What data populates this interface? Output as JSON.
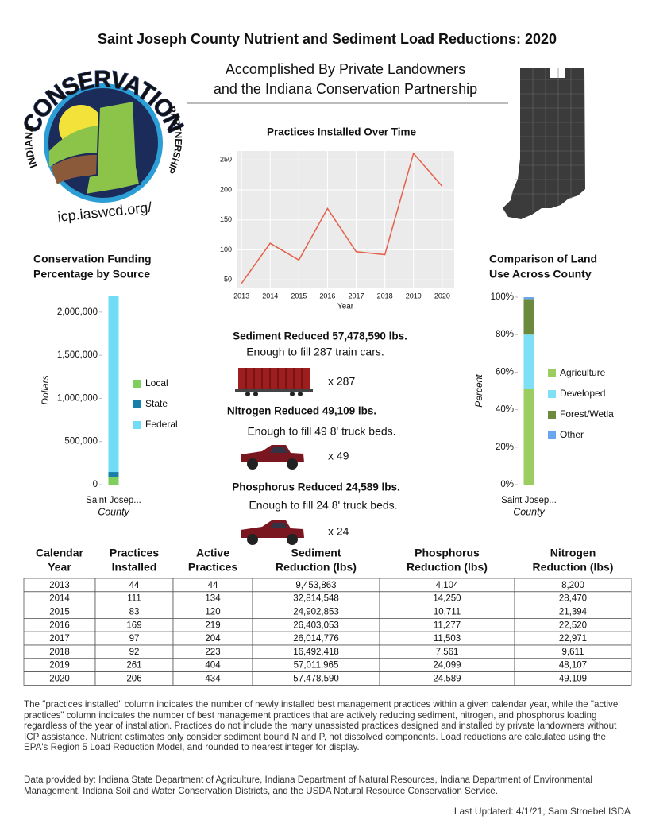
{
  "header": {
    "title": "Saint Joseph County Nutrient and Sediment Load Reductions: 2020",
    "subtitle": [
      "Accomplished By Private Landowners",
      "and the Indiana Conservation Partnership"
    ]
  },
  "logo": {
    "arc_text": "CONSERVATION",
    "left_text": "INDIANA",
    "right_text": "PARTNERSHIP",
    "url": "icp.iaswcd.org/"
  },
  "chart_data": [
    {
      "type": "line",
      "title": "Practices Installed Over Time",
      "x_label": "Year",
      "x": [
        2013,
        2014,
        2015,
        2016,
        2017,
        2018,
        2019,
        2020
      ],
      "values": [
        44,
        111,
        83,
        169,
        97,
        92,
        261,
        206
      ],
      "color": "#e5604b",
      "xlim": [
        2012.83,
        2020.42
      ],
      "ylim": [
        37,
        265
      ],
      "xticks": [
        2013,
        2014,
        2015,
        2016,
        2017,
        2018,
        2019,
        2020
      ],
      "yticks": [
        50,
        100,
        150,
        200,
        250
      ],
      "grid": true
    },
    {
      "type": "stacked_bar",
      "title": [
        "Conservation Funding",
        "Percentage by Source"
      ],
      "y_label": "Dollars",
      "x_label": "County",
      "categories": [
        "Saint Josep..."
      ],
      "series": [
        {
          "name": "Local",
          "color": "#7fcf5e",
          "values": [
            92000
          ]
        },
        {
          "name": "State",
          "color": "#1880a8",
          "values": [
            55000
          ]
        },
        {
          "name": "Federal",
          "color": "#70dcf6",
          "values": [
            2045000
          ]
        }
      ],
      "ylim": [
        0,
        2192000
      ],
      "yticks": [
        0,
        {
          "value": 500000,
          "label": "500,000"
        },
        {
          "value": 1000000,
          "label": "1,000,000"
        },
        {
          "value": 1500000,
          "label": "1,500,000"
        },
        {
          "value": 2000000,
          "label": "2,000,000"
        }
      ]
    },
    {
      "type": "stacked_bar",
      "title": [
        "Comparison of Land",
        "Use Across County"
      ],
      "y_label": "Percent",
      "x_label": "County",
      "categories": [
        "Saint Josep..."
      ],
      "series": [
        {
          "name": "Agriculture",
          "color": "#9ccd60",
          "values": [
            51
          ]
        },
        {
          "name": "Developed",
          "color": "#7ee0f5",
          "values": [
            29
          ]
        },
        {
          "name": "Forest/Wetla",
          "color": "#6b8a3d",
          "values": [
            19
          ]
        },
        {
          "name": "Other",
          "color": "#6aa6ee",
          "values": [
            1
          ]
        }
      ],
      "ylim": [
        0,
        100
      ],
      "yticks": [
        {
          "value": 0,
          "label": "0%"
        },
        {
          "value": 20,
          "label": "20%"
        },
        {
          "value": 40,
          "label": "40%"
        },
        {
          "value": 60,
          "label": "60%"
        },
        {
          "value": 80,
          "label": "80%"
        },
        {
          "value": 100,
          "label": "100%"
        }
      ]
    }
  ],
  "stats": [
    {
      "headline": "Sediment Reduced 57,478,590 lbs.",
      "detail": "Enough to fill 287 train cars.",
      "multiplier": "x 287"
    },
    {
      "headline": "Nitrogen Reduced 49,109 lbs.",
      "detail": "Enough to fill 49 8' truck beds.",
      "multiplier": "x 49"
    },
    {
      "headline": "Phosphorus Reduced 24,589 lbs.",
      "detail": "Enough to fill 24 8' truck beds.",
      "multiplier": "x 24"
    }
  ],
  "table": {
    "header": [
      [
        "Calendar",
        "Year"
      ],
      [
        "Practices",
        "Installed"
      ],
      [
        "Active",
        "Practices"
      ],
      [
        "Sediment",
        "Reduction (lbs)"
      ],
      [
        "Phosphorus",
        "Reduction (lbs)"
      ],
      [
        "Nitrogen",
        "Reduction (lbs)"
      ]
    ],
    "rows": [
      [
        "2013",
        "44",
        "44",
        "9,453,863",
        "4,104",
        "8,200"
      ],
      [
        "2014",
        "111",
        "134",
        "32,814,548",
        "14,250",
        "28,470"
      ],
      [
        "2015",
        "83",
        "120",
        "24,902,853",
        "10,711",
        "21,394"
      ],
      [
        "2016",
        "169",
        "219",
        "26,403,053",
        "11,277",
        "22,520"
      ],
      [
        "2017",
        "97",
        "204",
        "26,014,776",
        "11,503",
        "22,971"
      ],
      [
        "2018",
        "92",
        "223",
        "16,492,418",
        "7,561",
        "9,611"
      ],
      [
        "2019",
        "261",
        "404",
        "57,011,965",
        "24,099",
        "48,107"
      ],
      [
        "2020",
        "206",
        "434",
        "57,478,590",
        "24,589",
        "49,109"
      ]
    ]
  },
  "notes": [
    "The \"practices installed\" column indicates the number of newly installed best management practices within a given calendar year, while the \"active practices\" column indicates the number of best management practices that are actively reducing sediment, nitrogen, and phosphorus loading regardless of the year of installation.  Practices do not include the many unassisted practices designed and installed by private landowners without ICP assistance. Nutrient estimates only consider sediment bound N and P, not dissolved components. Load reductions are calculated using the EPA's Region 5 Load Reduction Model, and rounded to nearest integer for display.",
    "Data provided by: Indiana State Department of Agriculture, Indiana Department of Natural Resources, Indiana Department of Environmental Management, Indiana Soil and Water Conservation Districts, and the USDA Natural Resource Conservation Service."
  ],
  "footer": "Last Updated: 4/1/21, Sam Stroebel ISDA"
}
